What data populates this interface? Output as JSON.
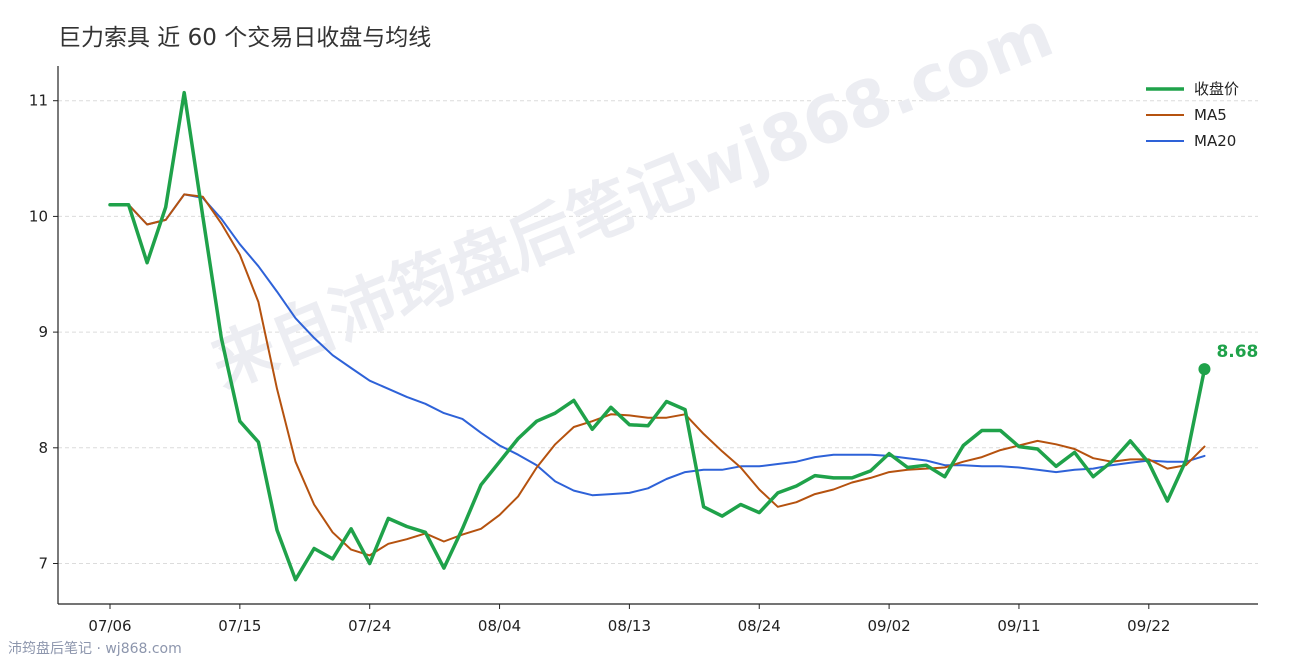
{
  "chart_data": {
    "type": "line",
    "title": "巨力索具 近 60 个交易日收盘与均线",
    "xlabel": "",
    "ylabel": "",
    "ylim": [
      6.65,
      11.3
    ],
    "yticks": [
      7,
      8,
      9,
      10,
      11
    ],
    "x": [
      "07/06",
      "07/07",
      "07/10",
      "07/11",
      "07/12",
      "07/13",
      "07/14",
      "07/17",
      "07/18",
      "07/19",
      "07/20",
      "07/21",
      "07/24",
      "07/25",
      "07/26",
      "07/27",
      "07/28",
      "07/31",
      "08/01",
      "08/02",
      "08/03",
      "08/04",
      "08/07",
      "08/08",
      "08/09",
      "08/10",
      "08/11",
      "08/14",
      "08/15",
      "08/16",
      "08/17",
      "08/18",
      "08/21",
      "08/22",
      "08/23",
      "08/24",
      "08/25",
      "08/28",
      "08/29",
      "08/30",
      "08/31",
      "09/01",
      "09/04",
      "09/05",
      "09/06",
      "09/07",
      "09/08",
      "09/11",
      "09/12",
      "09/13",
      "09/14",
      "09/15",
      "09/18",
      "09/19",
      "09/20",
      "09/21",
      "09/22",
      "09/25",
      "09/26",
      "09/27"
    ],
    "xtick_labels": [
      "07/06",
      "07/15",
      "07/24",
      "08/04",
      "08/13",
      "08/24",
      "09/02",
      "09/11",
      "09/22"
    ],
    "xtick_index": [
      0,
      7,
      14,
      21,
      28,
      35,
      42,
      49,
      56
    ],
    "grid": true,
    "legend_position": "top-right",
    "series": [
      {
        "name": "收盘价",
        "color": "#1fa24a",
        "values": [
          10.1,
          10.1,
          9.6,
          10.08,
          11.07,
          10.0,
          8.95,
          8.23,
          8.05,
          7.29,
          6.86,
          7.13,
          7.04,
          7.3,
          7.0,
          7.39,
          7.32,
          7.27,
          6.96,
          7.3,
          7.68,
          7.88,
          8.08,
          8.23,
          8.3,
          8.41,
          8.16,
          8.35,
          8.2,
          8.19,
          8.4,
          8.33,
          7.49,
          7.41,
          7.51,
          7.44,
          7.61,
          7.67,
          7.76,
          7.74,
          7.74,
          7.8,
          7.95,
          7.83,
          7.85,
          7.75,
          8.02,
          8.15,
          8.15,
          8.01,
          7.99,
          7.84,
          7.96,
          7.75,
          7.88,
          8.06,
          7.87,
          7.54,
          7.89,
          8.68
        ]
      },
      {
        "name": "MA5",
        "color": "#b5520f",
        "values": [
          10.1,
          10.1,
          9.93,
          9.97,
          10.19,
          10.17,
          9.94,
          9.67,
          9.26,
          8.51,
          7.88,
          7.51,
          7.27,
          7.12,
          7.07,
          7.17,
          7.21,
          7.26,
          7.19,
          7.25,
          7.3,
          7.42,
          7.58,
          7.83,
          8.03,
          8.18,
          8.23,
          8.29,
          8.28,
          8.26,
          8.26,
          8.29,
          8.12,
          7.97,
          7.83,
          7.64,
          7.49,
          7.53,
          7.6,
          7.64,
          7.7,
          7.74,
          7.79,
          7.81,
          7.82,
          7.83,
          7.88,
          7.92,
          7.98,
          8.02,
          8.06,
          8.03,
          7.99,
          7.91,
          7.88,
          7.9,
          7.9,
          7.82,
          7.85,
          8.01
        ]
      },
      {
        "name": "MA20",
        "color": "#2e62d8",
        "values": [
          10.1,
          10.1,
          9.93,
          9.97,
          10.19,
          10.16,
          9.98,
          9.76,
          9.57,
          9.35,
          9.12,
          8.95,
          8.8,
          8.69,
          8.58,
          8.51,
          8.44,
          8.38,
          8.3,
          8.25,
          8.13,
          8.02,
          7.94,
          7.85,
          7.71,
          7.63,
          7.59,
          7.6,
          7.61,
          7.65,
          7.73,
          7.79,
          7.81,
          7.81,
          7.84,
          7.84,
          7.86,
          7.88,
          7.92,
          7.94,
          7.94,
          7.94,
          7.93,
          7.91,
          7.89,
          7.85,
          7.85,
          7.84,
          7.84,
          7.83,
          7.81,
          7.79,
          7.81,
          7.82,
          7.85,
          7.87,
          7.89,
          7.88,
          7.88,
          7.93
        ]
      }
    ],
    "annotations": [
      {
        "text": "8.68",
        "series": "收盘价",
        "point": "last",
        "color": "#1fa24a"
      }
    ]
  },
  "watermark": "来自沛筠盘后笔记wj868.com",
  "footer": "沛筠盘后笔记 · wj868.com"
}
